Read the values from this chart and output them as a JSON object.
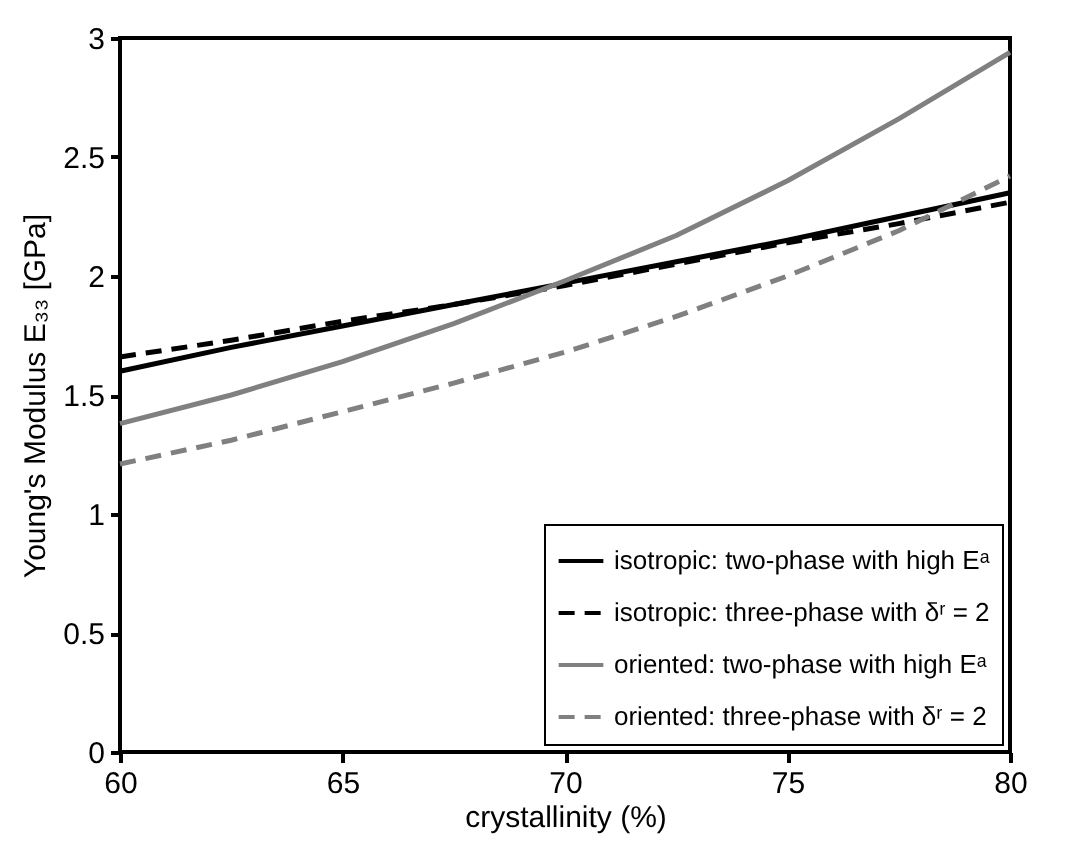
{
  "chart_data": {
    "type": "line",
    "xlabel": "crystallinity (%)",
    "ylabel": "Young's Modulus E₃₃ [GPa]",
    "x": [
      60,
      62.5,
      65,
      67.5,
      70,
      72.5,
      75,
      77.5,
      80
    ],
    "xlim": [
      60,
      80
    ],
    "xticks": [
      60,
      65,
      70,
      75,
      80
    ],
    "ylim": [
      0,
      3
    ],
    "yticks": [
      0,
      0.5,
      1,
      1.5,
      2,
      2.5,
      3
    ],
    "grid": false,
    "legend": "bottom right",
    "series": [
      {
        "name": "isotropic: two-phase with high Eᵃ",
        "color": "#000000",
        "line_style": "solid",
        "values": [
          1.6,
          1.7,
          1.79,
          1.88,
          1.97,
          2.06,
          2.15,
          2.25,
          2.35
        ]
      },
      {
        "name": "isotropic: three-phase with δʳ = 2",
        "color": "#000000",
        "line_style": "dashed",
        "values": [
          1.66,
          1.73,
          1.81,
          1.88,
          1.96,
          2.05,
          2.14,
          2.22,
          2.31
        ]
      },
      {
        "name": "oriented: two-phase with high Eᵃ",
        "color": "#808080",
        "line_style": "solid",
        "values": [
          1.38,
          1.5,
          1.64,
          1.8,
          1.98,
          2.17,
          2.4,
          2.66,
          2.94
        ]
      },
      {
        "name": "oriented: three-phase with δʳ = 2",
        "color": "#808080",
        "line_style": "dashed",
        "values": [
          1.21,
          1.31,
          1.43,
          1.55,
          1.68,
          1.83,
          2.0,
          2.19,
          2.42
        ]
      }
    ]
  }
}
